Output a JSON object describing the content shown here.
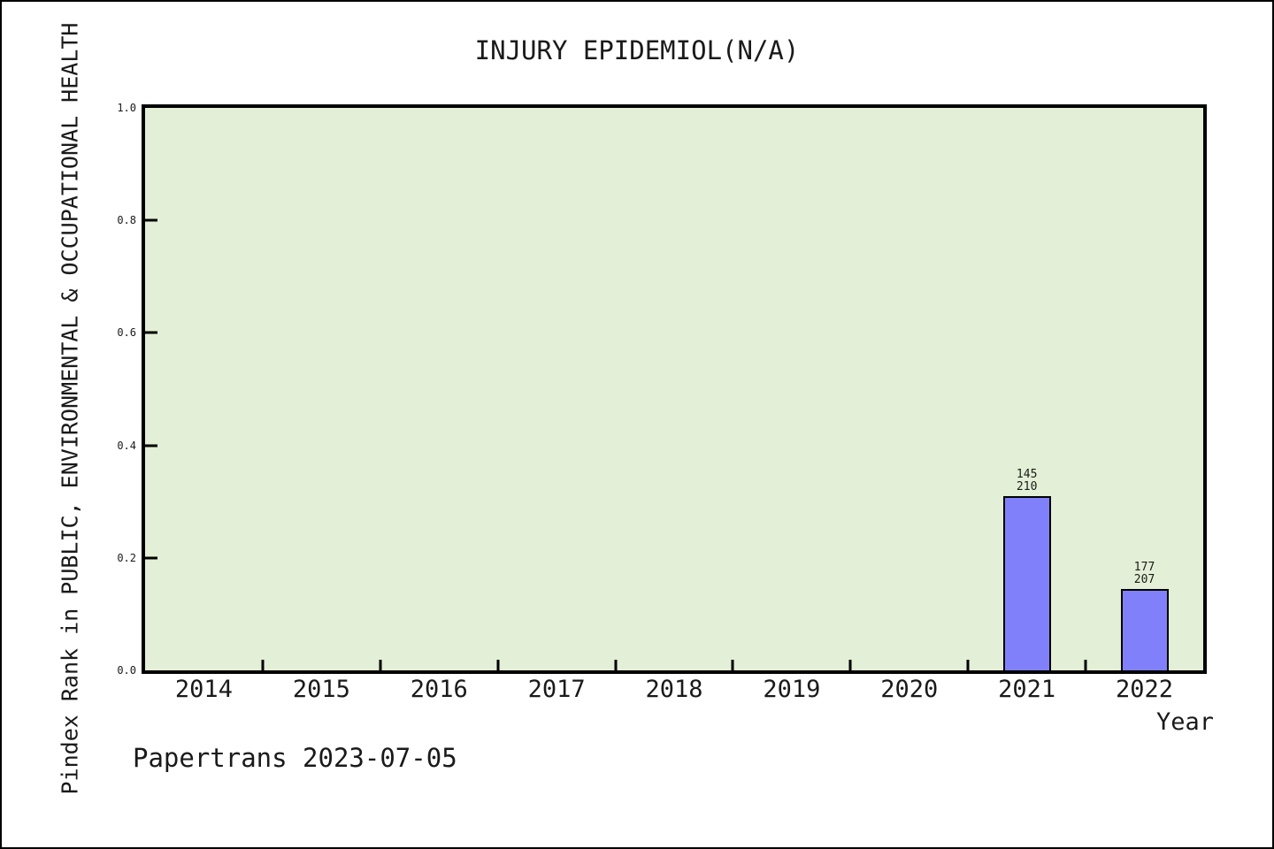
{
  "figure": {
    "footer": "Papertrans 2023-07-05"
  },
  "chart_data": {
    "type": "bar",
    "title": "INJURY EPIDEMIOL(N/A)",
    "xlabel": "Year",
    "ylabel": "Pindex Rank in PUBLIC, ENVIRONMENTAL & OCCUPATIONAL HEALTH",
    "categories": [
      "2014",
      "2015",
      "2016",
      "2017",
      "2018",
      "2019",
      "2020",
      "2021",
      "2022"
    ],
    "series": [
      {
        "name": "Pindex Rank",
        "points": [
          {
            "category": "2021",
            "rank": 145,
            "total": 210,
            "bar_height": 0.3095,
            "label_lines": [
              "145",
              "210"
            ]
          },
          {
            "category": "2022",
            "rank": 177,
            "total": 207,
            "bar_height": 0.1449,
            "label_lines": [
              "177",
              "207"
            ]
          }
        ]
      }
    ],
    "ylim": [
      0.0,
      1.0
    ],
    "yticks": [
      1.0,
      0.8,
      0.6,
      0.4,
      0.2,
      0.0
    ],
    "ytick_labels": [
      "1.0",
      "0.8",
      "0.6",
      "0.4",
      "0.2",
      "0.0"
    ],
    "grid": false,
    "legend": false,
    "plot_bg_color": "#e3efd6",
    "bar_fill_color": "#8080fa",
    "bar_border_color": "#000000"
  }
}
